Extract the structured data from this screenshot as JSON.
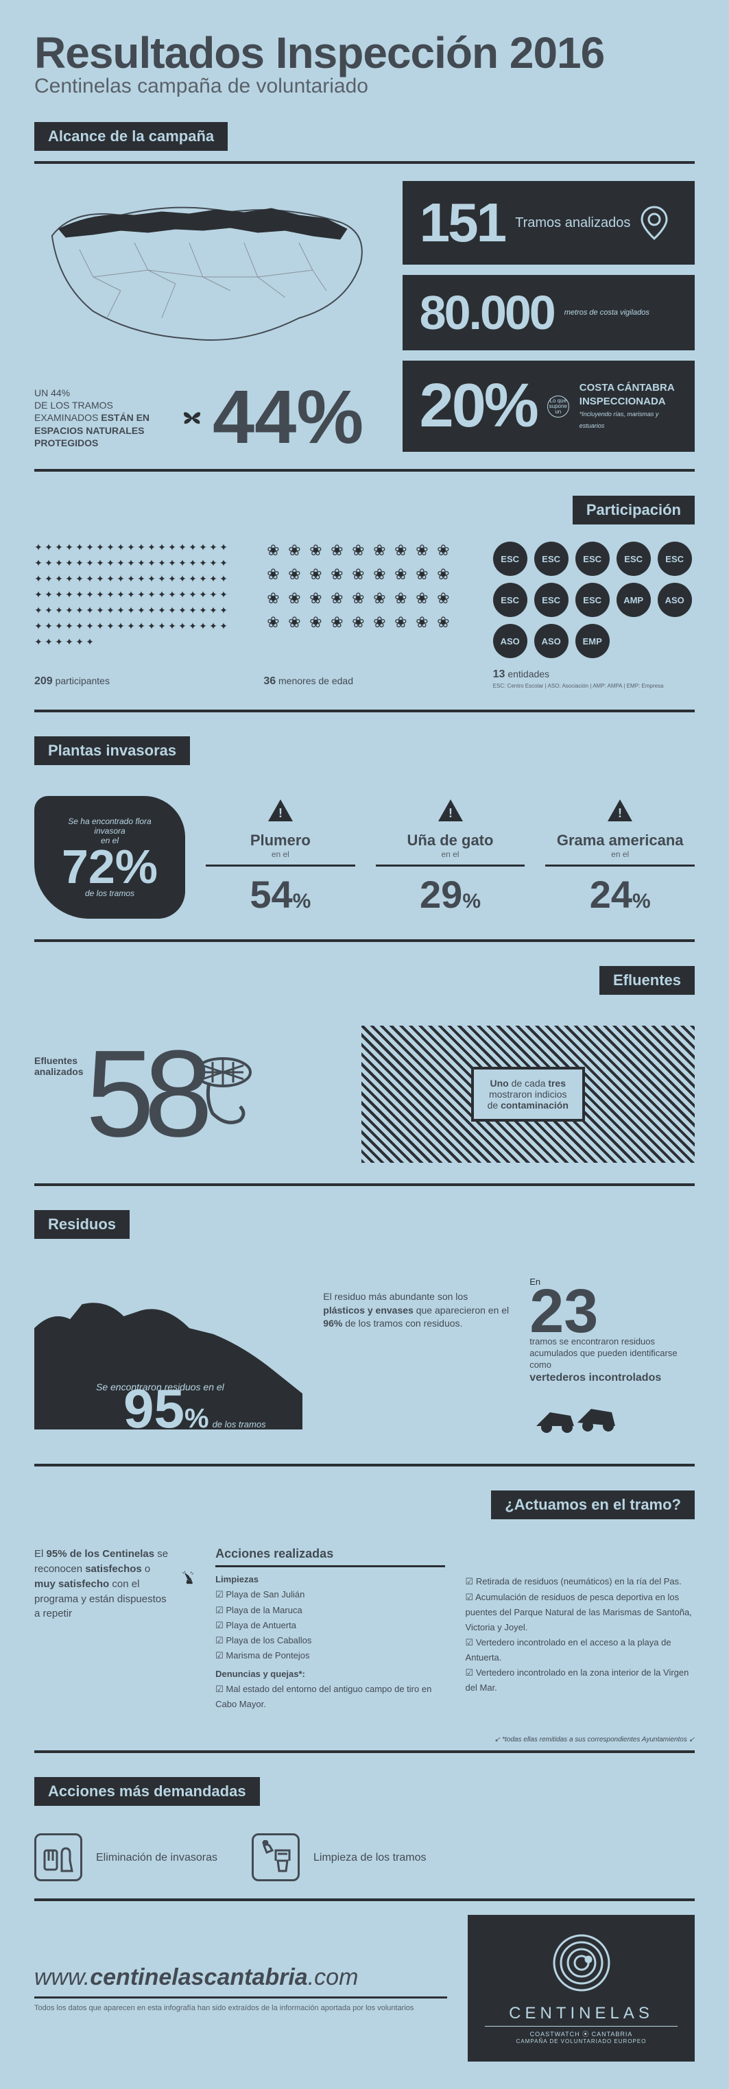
{
  "colors": {
    "bg": "#b8d4e3",
    "dark": "#2b2f33",
    "text": "#434a52",
    "muted": "#5a6169"
  },
  "header": {
    "title": "Resultados Inspección 2016",
    "subtitle": "Centinelas campaña de voluntariado"
  },
  "alcance": {
    "heading": "Alcance de la campaña",
    "desc_prefix": "UN 44%\nDE LOS TRAMOS\nEXAMINADOS ",
    "desc_bold": "ESTÁN EN ESPACIOS NATURALES PROTEGIDOS",
    "pct": "44%",
    "stats": [
      {
        "num": "151",
        "label": "Tramos analizados",
        "icon": "pin"
      },
      {
        "num": "80.000",
        "label": "metros de costa vigilados"
      },
      {
        "num": "20%",
        "circle_text": "Lo que supone un",
        "label_bold": "COSTA CÁNTABRA INSPECCIONADA",
        "label_sub": "*Incluyendo rías, marismas y estuarios"
      }
    ]
  },
  "participacion": {
    "heading": "Participación",
    "cols": [
      {
        "count": 209,
        "icon_count": 120,
        "label_num": "209",
        "label_text": " participantes"
      },
      {
        "count": 36,
        "icon_count": 36,
        "label_num": "36",
        "label_text": " menores de edad"
      },
      {
        "entities": [
          "ESC",
          "ESC",
          "ESC",
          "ESC",
          "ESC",
          "ESC",
          "ESC",
          "ESC",
          "AMP",
          "ASO",
          "ASO",
          "ASO",
          "EMP"
        ],
        "label_num": "13",
        "label_text": " entidades",
        "legend": "ESC: Centro Escolar | ASO: Asociación | AMP: AMPA | EMP: Empresa"
      }
    ]
  },
  "plantas": {
    "heading": "Plantas invasoras",
    "badge_pre": "Se ha encontrado flora invasora",
    "badge_mid": "en el",
    "badge_pct": "72%",
    "badge_post": "de los tramos",
    "items": [
      {
        "name": "Plumero",
        "sub": "en el",
        "pct": "54"
      },
      {
        "name": "Uña de gato",
        "sub": "en el",
        "pct": "29"
      },
      {
        "name": "Grama americana",
        "sub": "en el",
        "pct": "24"
      }
    ]
  },
  "efluentes": {
    "heading": "Efluentes",
    "num": "58",
    "label": "Efluentes analizados",
    "sign_pre": "Uno",
    "sign_mid": " de cada ",
    "sign_bold2": "tres",
    "sign_line2": "mostraron indicios",
    "sign_line3": "de ",
    "sign_line3_bold": "contaminación"
  },
  "residuos": {
    "heading": "Residuos",
    "left_pre": "Se encontraron residuos en el",
    "left_pct": "95",
    "left_post": "de los tramos",
    "mid_text_pre": "El residuo más abundante son los ",
    "mid_text_bold": "plásticos y envases",
    "mid_text_post": " que aparecieron en el ",
    "mid_text_pct": "96%",
    "mid_text_end": " de los tramos con residuos.",
    "right_pre": "En",
    "right_num": "23",
    "right_text": "tramos se encontraron residuos acumulados que pueden identificarse como",
    "right_bold": "vertederos incontrolados"
  },
  "actuamos": {
    "heading": "¿Actuamos en el tramo?",
    "sat_pre": "El ",
    "sat_pct": "95% de los Centinelas",
    "sat_mid": " se reconocen ",
    "sat_bold": "satisfechos",
    "sat_or": " o ",
    "sat_bold2": "muy satisfecho",
    "sat_end": " con el programa y están dispuestos a repetir",
    "acciones_h": "Acciones realizadas",
    "limpiezas_h": "Limpiezas",
    "limpiezas": [
      "Playa de San Julián",
      "Playa de la Maruca",
      "Playa de Antuerta",
      "Playa de los Caballos",
      "Marisma de Pontejos"
    ],
    "denuncias_h": "Denuncias y quejas*:",
    "denuncias": [
      "Mal estado del entorno del antiguo campo de tiro en Cabo Mayor."
    ],
    "right_items": [
      "Retirada de residuos (neumáticos) en la ría del Pas.",
      "Acumulación de residuos de pesca deportiva en los puentes del Parque Natural de las Marismas de Santoña, Victoria y Joyel.",
      "Vertedero incontrolado en el acceso a la playa de Antuerta.",
      "Vertedero incontrolado en la zona interior de la Virgen del Mar."
    ],
    "note": "*todas ellas remitidas a sus correspondientes Ayuntamientos"
  },
  "demandadas": {
    "heading": "Acciones más demandadas",
    "items": [
      {
        "icon": "🧤",
        "text": "Eliminación de invasoras"
      },
      {
        "icon": "🗑",
        "text": "Limpieza de los tramos"
      }
    ]
  },
  "footer": {
    "url_pre": "www.",
    "url_bold": "centinelascantabria",
    "url_post": ".com",
    "legal": "Todos los datos que aparecen en esta infografía han sido extraídos de la información aportada por los voluntarios",
    "logo_title": "CENTINELAS",
    "logo_sub": "COASTWATCH ⦿ CANTABRIA",
    "logo_sub2": "CAMPAÑA DE VOLUNTARIADO EUROPEO"
  }
}
